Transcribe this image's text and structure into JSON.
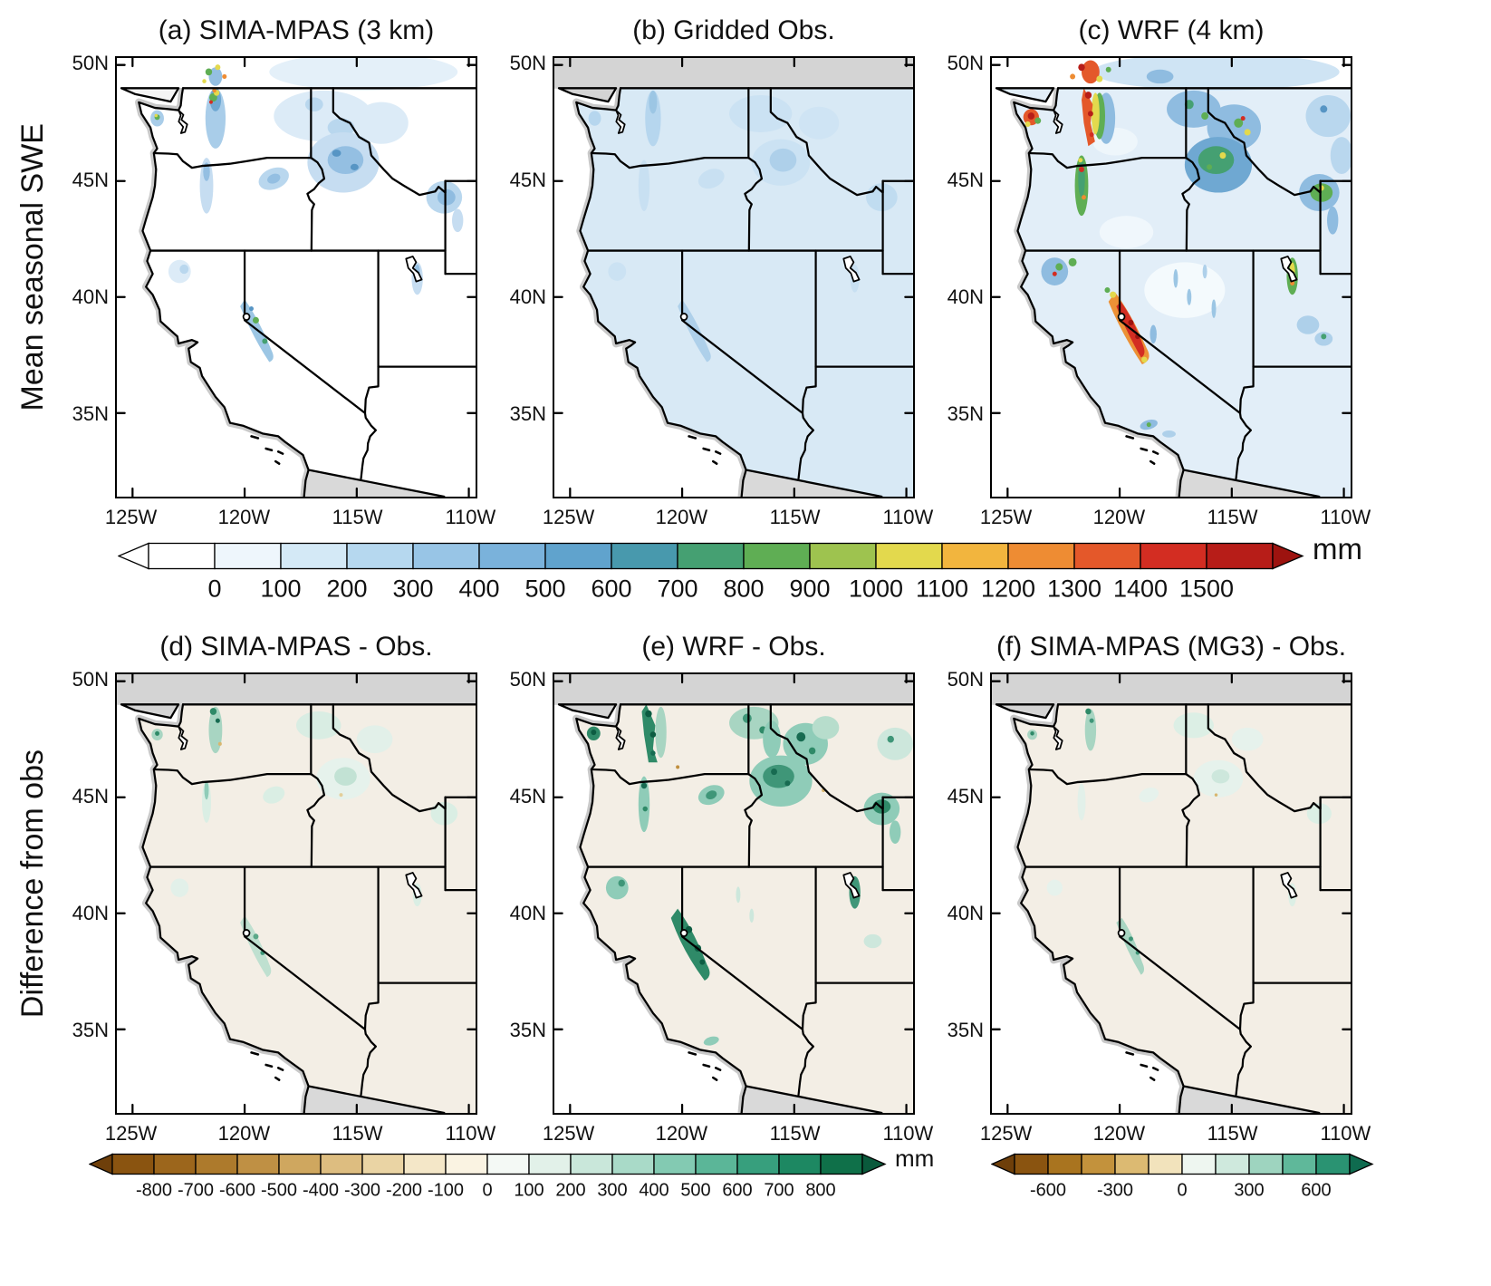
{
  "figure": {
    "row_labels": {
      "top": "Mean seasonal SWE",
      "bottom": "Difference from obs"
    }
  },
  "panels": {
    "a": {
      "title": "(a) SIMA-MPAS (3 km)"
    },
    "b": {
      "title": "(b) Gridded Obs."
    },
    "c": {
      "title": "(c) WRF (4 km)"
    },
    "d": {
      "title": "(d) SIMA-MPAS - Obs."
    },
    "e": {
      "title": "(e) WRF - Obs."
    },
    "f": {
      "title": "(f) SIMA-MPAS (MG3) - Obs."
    }
  },
  "axes": {
    "lat": [
      "50N",
      "45N",
      "40N",
      "35N"
    ],
    "lon": [
      "125W",
      "120W",
      "115W",
      "110W"
    ]
  },
  "colorbars": {
    "swe": {
      "unit": "mm",
      "left_tri": "#ffffff",
      "right_tri": "#9d130f",
      "boxes": [
        "#ffffff",
        "#eef6fc",
        "#d4e9f6",
        "#b6d8ef",
        "#98c5e6",
        "#7ab2db",
        "#60a3cd",
        "#4899ad",
        "#45a072",
        "#5fae54",
        "#9ec34f",
        "#e3d94d",
        "#f2b53e",
        "#ee8c33",
        "#e4582a",
        "#d32d22",
        "#b71d18"
      ],
      "tick_labels": [
        "0",
        "100",
        "200",
        "300",
        "400",
        "500",
        "600",
        "700",
        "800",
        "900",
        "1000",
        "1100",
        "1200",
        "1300",
        "1400",
        "1500"
      ],
      "tick_boundaries": [
        1,
        2,
        3,
        4,
        5,
        6,
        7,
        8,
        9,
        10,
        11,
        12,
        13,
        14,
        15,
        16
      ]
    },
    "diff": {
      "unit": "mm",
      "left_tri": "#6e3f0a",
      "right_tri": "#0a5a3c",
      "boxes": [
        "#8a5410",
        "#9c661c",
        "#ad7a2c",
        "#bf9044",
        "#cfa75f",
        "#ddbd80",
        "#ead4a4",
        "#f4e7c8",
        "#faf3e2",
        "#f4f9f5",
        "#e2f1e9",
        "#c9e7da",
        "#a9dac8",
        "#83cab2",
        "#5bb698",
        "#379f7d",
        "#1d8862",
        "#0f7049"
      ],
      "tick_labels": [
        "-800",
        "-700",
        "-600",
        "-500",
        "-400",
        "-300",
        "-200",
        "-100",
        "0",
        "100",
        "200",
        "300",
        "400",
        "500",
        "600",
        "700",
        "800"
      ],
      "tick_boundaries": [
        1,
        2,
        3,
        4,
        5,
        6,
        7,
        8,
        9,
        10,
        11,
        12,
        13,
        14,
        15,
        16,
        17
      ]
    },
    "diff_mg3": {
      "unit": "",
      "left_tri": "#6e3f0a",
      "right_tri": "#0f6b4f",
      "boxes": [
        "#8a5410",
        "#a9741f",
        "#c3923c",
        "#dcba72",
        "#f2e3bc",
        "#eef6f0",
        "#cfe9dd",
        "#9ed4bf",
        "#5fb89a",
        "#2a9372"
      ],
      "tick_labels": [
        "-600",
        "-300",
        "0",
        "300",
        "600"
      ],
      "tick_boundaries": [
        1,
        3,
        5,
        7,
        9
      ]
    }
  },
  "chart_data": [
    {
      "type": "heatmap",
      "panel": "(a)",
      "title": "(a) SIMA-MPAS (3 km)",
      "row": "Mean seasonal SWE",
      "units": "mm",
      "lon_ticks": [
        "125W",
        "120W",
        "115W",
        "110W"
      ],
      "lat_ticks": [
        "50N",
        "45N",
        "40N",
        "35N"
      ],
      "color_scale": {
        "min": 0,
        "max": 1500,
        "interval": 100,
        "palette": "white-blue-green-yellow-orange-red"
      },
      "description": "Mean seasonal snow water equivalent from SIMA-MPAS at 3 km over the western US; 100-500 mm over the Washington Cascades, northern and central Idaho Rockies, Yellowstone region and Sierra Nevada, with isolated maxima above 800 mm in the north Cascades."
    },
    {
      "type": "heatmap",
      "panel": "(b)",
      "title": "(b) Gridded Obs.",
      "row": "Mean seasonal SWE",
      "units": "mm",
      "lon_ticks": [
        "125W",
        "120W",
        "115W",
        "110W"
      ],
      "lat_ticks": [
        "50N",
        "45N",
        "40N",
        "35N"
      ],
      "color_scale": {
        "min": 0,
        "max": 1500,
        "interval": 100,
        "palette": "white-blue-green-yellow-orange-red"
      },
      "description": "Gridded observations of mean seasonal SWE; smooth, low-amplitude pattern with broad 0-300 mm values over the mountains and no data (gray) over Canada and Mexico."
    },
    {
      "type": "heatmap",
      "panel": "(c)",
      "title": "(c) WRF (4 km)",
      "row": "Mean seasonal SWE",
      "units": "mm",
      "lon_ticks": [
        "125W",
        "120W",
        "115W",
        "110W"
      ],
      "lat_ticks": [
        "50N",
        "45N",
        "40N",
        "35N"
      ],
      "color_scale": {
        "min": 0,
        "max": 1500,
        "interval": 100,
        "palette": "white-blue-green-yellow-orange-red"
      },
      "description": "WRF 4 km simulation; strong maxima of 800-1500+ mm along the Washington Cascades, Olympics and Sierra Nevada, widespread 200-700 mm across the northern Rockies, Blue Mountains and Wasatch."
    },
    {
      "type": "heatmap",
      "panel": "(d)",
      "title": "(d) SIMA-MPAS - Obs.",
      "row": "Difference from obs",
      "units": "mm",
      "lon_ticks": [
        "125W",
        "120W",
        "115W",
        "110W"
      ],
      "lat_ticks": [
        "50N",
        "45N",
        "40N",
        "35N"
      ],
      "color_scale": {
        "min": -800,
        "max": 800,
        "interval": 100,
        "palette": "brown-white-teal"
      },
      "description": "SIMA-MPAS minus observations; mostly small differences, modest positive (100-400 mm) biases over the Washington Cascades, Idaho mountains and Sierra Nevada."
    },
    {
      "type": "heatmap",
      "panel": "(e)",
      "title": "(e) WRF - Obs.",
      "row": "Difference from obs",
      "units": "mm",
      "lon_ticks": [
        "125W",
        "120W",
        "115W",
        "110W"
      ],
      "lat_ticks": [
        "50N",
        "45N",
        "40N",
        "35N"
      ],
      "color_scale": {
        "min": -800,
        "max": 800,
        "interval": 100,
        "palette": "brown-white-teal"
      },
      "description": "WRF minus observations; large positive biases of 300-800 mm along the Cascades, northern Rockies, Yellowstone and the Sierra Nevada."
    },
    {
      "type": "heatmap",
      "panel": "(f)",
      "title": "(f) SIMA-MPAS (MG3) - Obs.",
      "row": "Difference from obs",
      "units": "mm",
      "lon_ticks": [
        "125W",
        "120W",
        "115W",
        "110W"
      ],
      "lat_ticks": [
        "50N",
        "45N",
        "40N",
        "35N"
      ],
      "color_scale": {
        "min": -750,
        "max": 750,
        "interval": 150,
        "labeled_ticks": [
          -600,
          -300,
          0,
          300,
          600
        ],
        "palette": "brown-white-teal"
      },
      "description": "SIMA-MPAS with MG3 microphysics minus observations; small biases similar to panel (d), slight positive differences over the Cascades and Sierra Nevada."
    }
  ]
}
